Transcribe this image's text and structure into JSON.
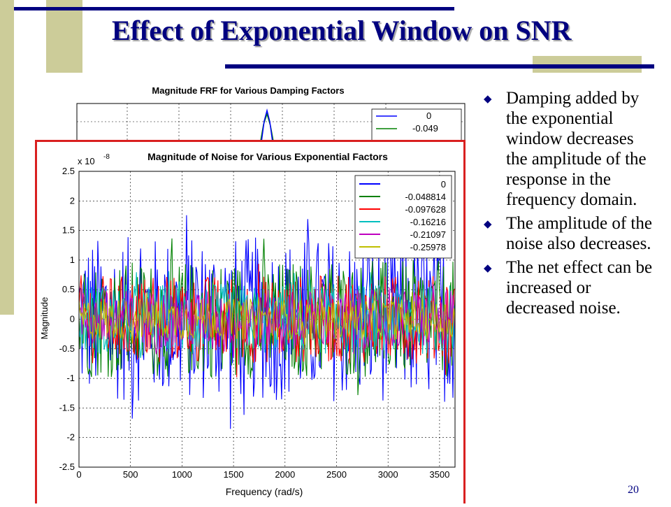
{
  "slide": {
    "title": "Effect of Exponential Window on SNR",
    "page_number": "20",
    "bullets": [
      "Damping added by the exponential window decreases the amplitude of the response in the frequency domain.",
      "The amplitude of the noise also decreases.",
      "The net effect can be increased or decreased noise."
    ],
    "colors": {
      "title": "#000080",
      "accent_bar": "#cccc99",
      "highlight_border": "#d92020"
    }
  },
  "chart_data": [
    {
      "type": "line",
      "title": "Magnitude FRF for Various Damping Factors",
      "partially_hidden": true,
      "legend": [
        "0",
        "-0.049"
      ],
      "legend_placement": "top-right",
      "grid": true
    },
    {
      "type": "line",
      "title": "Magnitude of Noise for Various Exponential Factors",
      "xlabel": "Frequency (rad/s)",
      "ylabel": "Magnitude",
      "y_scale_note": "x 10",
      "y_scale_exponent": "-8",
      "xlim": [
        0,
        3650
      ],
      "ylim": [
        -2.5,
        2.5
      ],
      "x_ticks": [
        "0",
        "500",
        "1000",
        "1500",
        "2000",
        "2500",
        "3000",
        "3500"
      ],
      "y_ticks": [
        "2.5",
        "2",
        "1.5",
        "1",
        "0.5",
        "0",
        "-0.5",
        "-1",
        "-1.5",
        "-2",
        "-2.5"
      ],
      "grid": true,
      "legend_placement": "top-right",
      "series": [
        {
          "name": "0",
          "color": "#0000ff",
          "amplitude": 1.4
        },
        {
          "name": "-0.048814",
          "color": "#008000",
          "amplitude": 1.0
        },
        {
          "name": "-0.097628",
          "color": "#ff0000",
          "amplitude": 0.75
        },
        {
          "name": "-0.16216",
          "color": "#00bfbf",
          "amplitude": 0.6
        },
        {
          "name": "-0.21097",
          "color": "#bf00bf",
          "amplitude": 0.5
        },
        {
          "name": "-0.25978",
          "color": "#bfbf00",
          "amplitude": 0.35
        }
      ]
    }
  ]
}
